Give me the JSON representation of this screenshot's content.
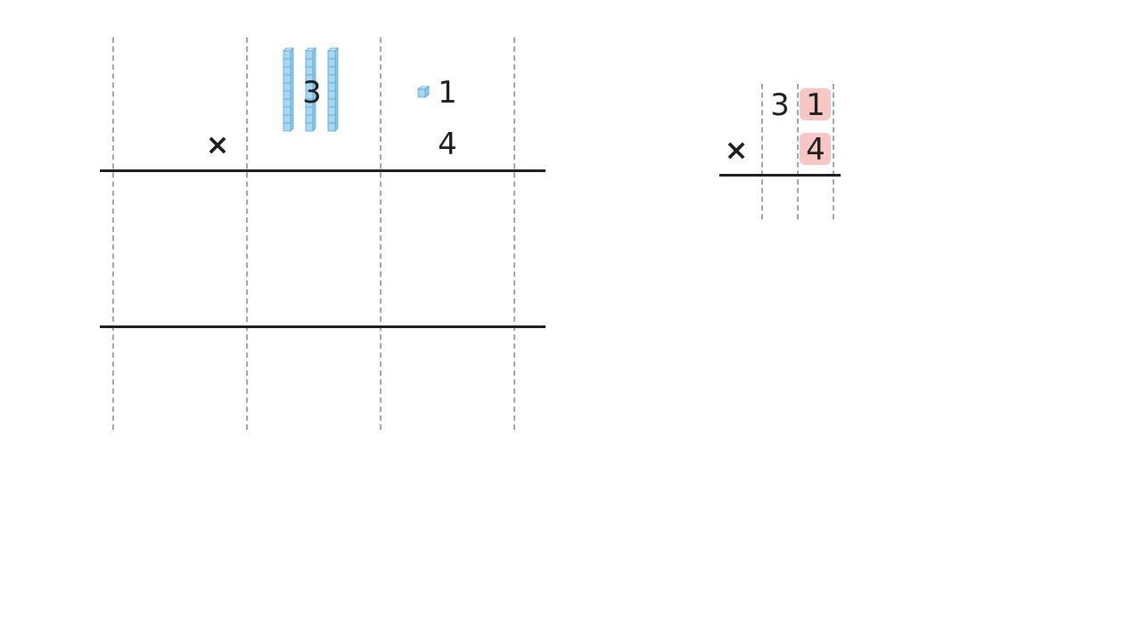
{
  "left_grid": {
    "operator": "×",
    "top_tens_digit": "3",
    "top_ones_digit": "1",
    "bottom_ones_digit": "4",
    "tens_rods_count": 3,
    "ones_cubes_count": 1
  },
  "right_grid": {
    "operator": "×",
    "top_tens_digit": "3",
    "top_ones_digit": "1",
    "bottom_ones_digit": "4"
  },
  "colors": {
    "block_fill": "#a8d8f0",
    "block_stroke": "#5aa8d6",
    "highlight": "#f9c6c6",
    "dashed_line": "#a5a5a5",
    "rule_line": "#1f1f1f"
  }
}
